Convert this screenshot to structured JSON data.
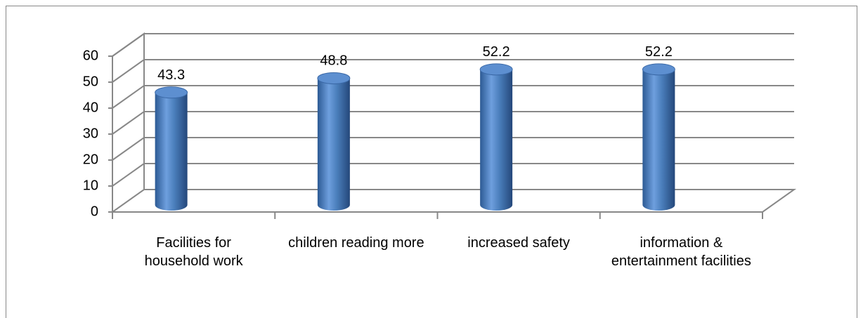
{
  "chart_data": {
    "type": "bar3d",
    "categories": [
      "Facilities for household work",
      "children reading more",
      "increased safety",
      "information & entertainment facilities"
    ],
    "values": [
      43.3,
      48.8,
      52.2,
      52.2
    ],
    "color": "#4a7ebb",
    "ylim": [
      0,
      60
    ],
    "yticks": [
      0,
      10,
      20,
      30,
      40,
      50,
      60
    ],
    "grid": true
  }
}
